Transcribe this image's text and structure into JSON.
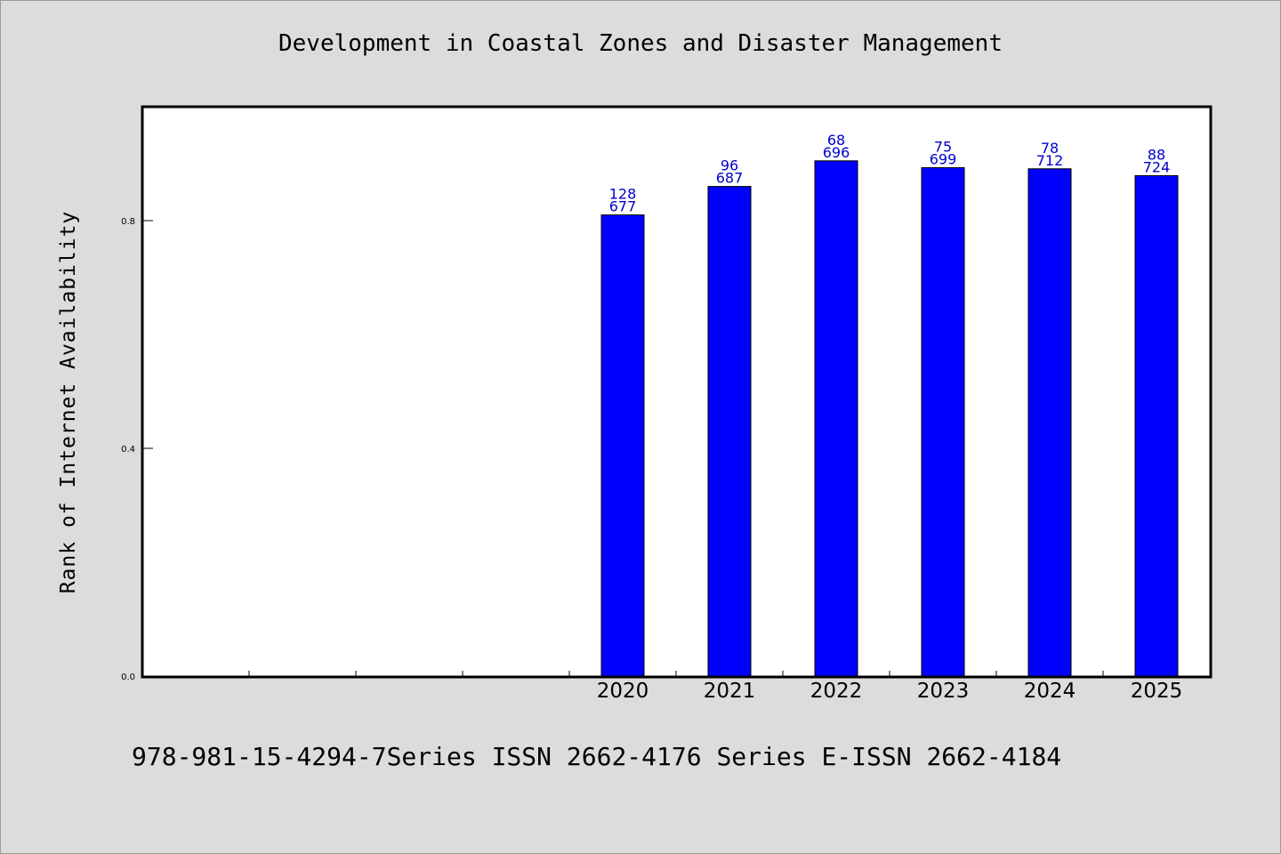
{
  "chart_data": {
    "type": "bar",
    "title": "Development in Coastal Zones and Disaster Management",
    "ylabel": "Rank of Internet Availability",
    "xlabel": "",
    "categories": [
      "2020",
      "2021",
      "2022",
      "2023",
      "2024",
      "2025"
    ],
    "values": [
      0.81,
      0.86,
      0.905,
      0.893,
      0.891,
      0.879
    ],
    "data_labels": [
      [
        "128",
        "677"
      ],
      [
        "96",
        "687"
      ],
      [
        "68",
        "696"
      ],
      [
        "75",
        "699"
      ],
      [
        "78",
        "712"
      ],
      [
        "88",
        "724"
      ]
    ],
    "ylim": [
      0,
      1.0
    ],
    "yticks": [
      "0.0",
      "0.4",
      "0.8"
    ],
    "ytick_values": [
      0.0,
      0.4,
      0.8
    ],
    "empty_leading_slots": 4,
    "bar_color": "#0000ff",
    "label_color": "#0000cc",
    "grid": false
  },
  "footer": {
    "text": "978-981-15-4294-7Series ISSN 2662-4176 Series E-ISSN 2662-4184"
  }
}
